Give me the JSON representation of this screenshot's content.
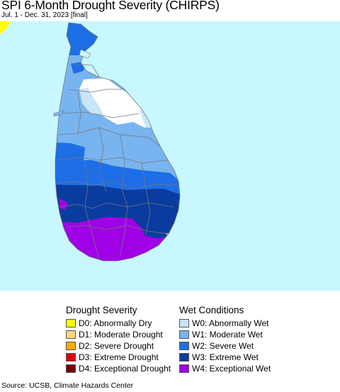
{
  "title": "SPI 6-Month Drought Severity (CHIRPS)",
  "subtitle": "Jul. 1 - Dec. 31, 2023 [final]",
  "source": "Source: UCSB, Climate Hazards Center",
  "colors": {
    "ocean": "#c8f7ff",
    "land_outside": "#ffffff",
    "boundary": "#777777"
  },
  "legend": {
    "drought_heading": "Drought Severity",
    "wet_heading": "Wet Conditions",
    "drought": [
      {
        "label": "D0: Abnormally Dry",
        "color": "#ffff00"
      },
      {
        "label": "D1: Moderate Drought",
        "color": "#fcd37f"
      },
      {
        "label": "D2: Severe Drought",
        "color": "#ffaa00"
      },
      {
        "label": "D3: Extreme Drought",
        "color": "#e60000"
      },
      {
        "label": "D4: Exceptional Drought",
        "color": "#730000"
      }
    ],
    "wet": [
      {
        "label": "W0: Abnormally Wet",
        "color": "#c8e6fa"
      },
      {
        "label": "W1: Moderate Wet",
        "color": "#78b4f0"
      },
      {
        "label": "W2: Severe Wet",
        "color": "#1e6ee6"
      },
      {
        "label": "W3: Extreme Wet",
        "color": "#0a3ca0"
      },
      {
        "label": "W4: Exceptional Wet",
        "color": "#a000e6"
      }
    ]
  }
}
